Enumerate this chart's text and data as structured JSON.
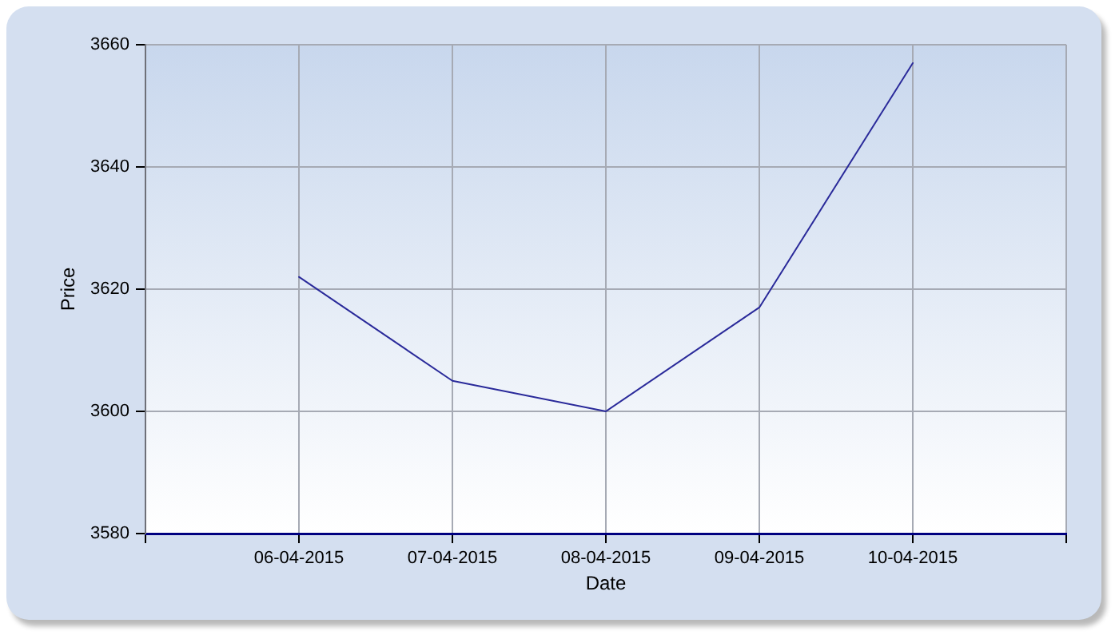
{
  "chart_data": {
    "type": "line",
    "xlabel": "Date",
    "ylabel": "Price",
    "x": [
      "2015-04-06",
      "2015-04-07",
      "2015-04-08",
      "2015-04-09",
      "2015-04-10"
    ],
    "values": [
      3622,
      3605,
      3600,
      3617,
      3657
    ],
    "color": "#2a2a9a",
    "xlim": [
      "2015-04-05",
      "2015-04-11"
    ],
    "xticks": [
      {
        "value": "2015-04-05",
        "label": null
      },
      {
        "value": "2015-04-06",
        "label": "06-04-2015"
      },
      {
        "value": "2015-04-07",
        "label": "07-04-2015"
      },
      {
        "value": "2015-04-08",
        "label": "08-04-2015"
      },
      {
        "value": "2015-04-09",
        "label": "09-04-2015"
      },
      {
        "value": "2015-04-10",
        "label": "10-04-2015"
      },
      {
        "value": "2015-04-11",
        "label": null
      }
    ],
    "ylim": [
      3580,
      3660
    ],
    "yticks": [
      3580,
      3600,
      3620,
      3640,
      3660
    ],
    "grid": true,
    "legend": false,
    "marker": "none",
    "line_style": "solid"
  }
}
